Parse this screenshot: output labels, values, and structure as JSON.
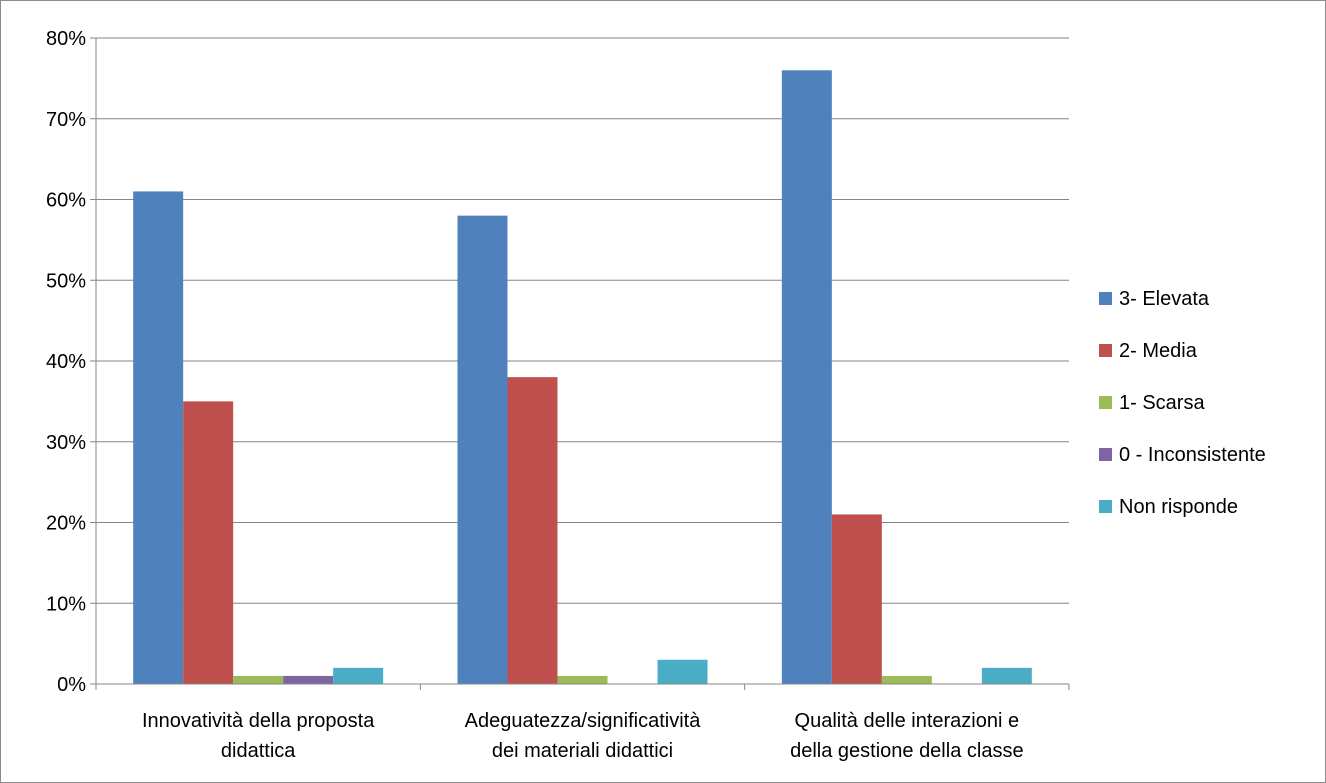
{
  "chart_data": {
    "type": "bar",
    "title": "",
    "xlabel": "",
    "ylabel": "",
    "ylim": [
      0,
      0.8
    ],
    "yticks": [
      "0%",
      "10%",
      "20%",
      "30%",
      "40%",
      "50%",
      "60%",
      "70%",
      "80%"
    ],
    "grid": true,
    "legend_position": "right",
    "categories": [
      [
        "Innovatività della proposta",
        "didattica"
      ],
      [
        "Adeguatezza/significatività",
        "dei materiali didattici"
      ],
      [
        "Qualità delle interazioni e",
        "della gestione della classe"
      ]
    ],
    "series": [
      {
        "name": "3- Elevata",
        "color": "#4f81bd",
        "values": [
          0.61,
          0.58,
          0.76
        ]
      },
      {
        "name": "2- Media",
        "color": "#c0504d",
        "values": [
          0.35,
          0.38,
          0.21
        ]
      },
      {
        "name": "1- Scarsa",
        "color": "#9bbb59",
        "values": [
          0.01,
          0.01,
          0.01
        ]
      },
      {
        "name": "0 - Inconsistente",
        "color": "#8064a2",
        "values": [
          0.01,
          0,
          0
        ]
      },
      {
        "name": "Non risponde",
        "color": "#4bacc6",
        "values": [
          0.02,
          0.03,
          0.02
        ]
      }
    ]
  }
}
